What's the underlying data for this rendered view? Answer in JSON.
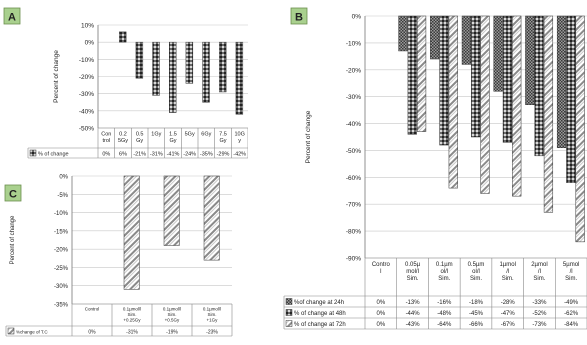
{
  "chart_data": [
    {
      "panel_label": "A",
      "type": "bar",
      "ylabel": "Percent of change",
      "ylim": [
        -50,
        10
      ],
      "yticks": [
        "10%",
        "0%",
        "-10%",
        "-20%",
        "-30%",
        "-40%",
        "-50%"
      ],
      "ytick_values": [
        10,
        0,
        -10,
        -20,
        -30,
        -40,
        -50
      ],
      "categories": [
        "Con trol",
        "0.2 5Gy",
        "0.5 Gy",
        "1Gy",
        "1.5 Gy",
        "5Gy",
        "6Gy",
        "7.5 Gy",
        "10G y"
      ],
      "series": [
        {
          "name": "% of change",
          "values": [
            0,
            6,
            -21,
            -31,
            -41,
            -24,
            -35,
            -29,
            -42
          ],
          "labels": [
            "0%",
            "6%",
            "-21%",
            "-31%",
            "-41%",
            "-24%",
            "-35%",
            "-29%",
            "-42%"
          ]
        }
      ],
      "grid": true,
      "legend": "table"
    },
    {
      "panel_label": "B",
      "type": "bar",
      "ylabel": "Percent of change",
      "ylim": [
        -90,
        0
      ],
      "yticks": [
        "0%",
        "-10%",
        "-20%",
        "-30%",
        "-40%",
        "-50%",
        "-60%",
        "-70%",
        "-80%",
        "-90%"
      ],
      "ytick_values": [
        0,
        -10,
        -20,
        -30,
        -40,
        -50,
        -60,
        -70,
        -80,
        -90
      ],
      "categories": [
        "Contro l",
        "0.05µ mol/l Sim.",
        "0.1µm ol/l Sim.",
        "0.5µm ol/l Sim.",
        "1µmol /l Sim.",
        "2µmol /l Sim.",
        "5µmol /l Sim."
      ],
      "series": [
        {
          "name": "%of change at 24h",
          "values": [
            0,
            -13,
            -16,
            -18,
            -28,
            -33,
            -49
          ],
          "labels": [
            "0%",
            "-13%",
            "-16%",
            "-18%",
            "-28%",
            "-33%",
            "-49%"
          ]
        },
        {
          "name": "% of change at 48h",
          "values": [
            0,
            -44,
            -48,
            -45,
            -47,
            -52,
            -62
          ],
          "labels": [
            "0%",
            "-44%",
            "-48%",
            "-45%",
            "-47%",
            "-52%",
            "-62%"
          ]
        },
        {
          "name": "% of change at 72h",
          "values": [
            0,
            -43,
            -64,
            -66,
            -67,
            -73,
            -84
          ],
          "labels": [
            "0%",
            "-43%",
            "-64%",
            "-66%",
            "-67%",
            "-73%",
            "-84%"
          ]
        }
      ],
      "grid": true,
      "legend": "table"
    },
    {
      "panel_label": "C",
      "type": "bar",
      "ylabel": "Percent of change",
      "ylim": [
        -35,
        0
      ],
      "yticks": [
        "0%",
        "-5%",
        "-10%",
        "-15%",
        "-20%",
        "-25%",
        "-30%",
        "-35%"
      ],
      "ytick_values": [
        0,
        -5,
        -10,
        -15,
        -20,
        -25,
        -30,
        -35
      ],
      "categories": [
        "Control",
        "0.1µmol/l Sim. +0.25Gy",
        "0.1µmol/l Sim. +0.5Gy",
        "0.1µmol/l Sim. +1Gy"
      ],
      "series": [
        {
          "name": "%change of T.C",
          "values": [
            0,
            -31,
            -19,
            -23
          ],
          "labels": [
            "0%",
            "-31%",
            "-19%",
            "-23%"
          ]
        }
      ],
      "grid": true,
      "legend": "table"
    }
  ]
}
